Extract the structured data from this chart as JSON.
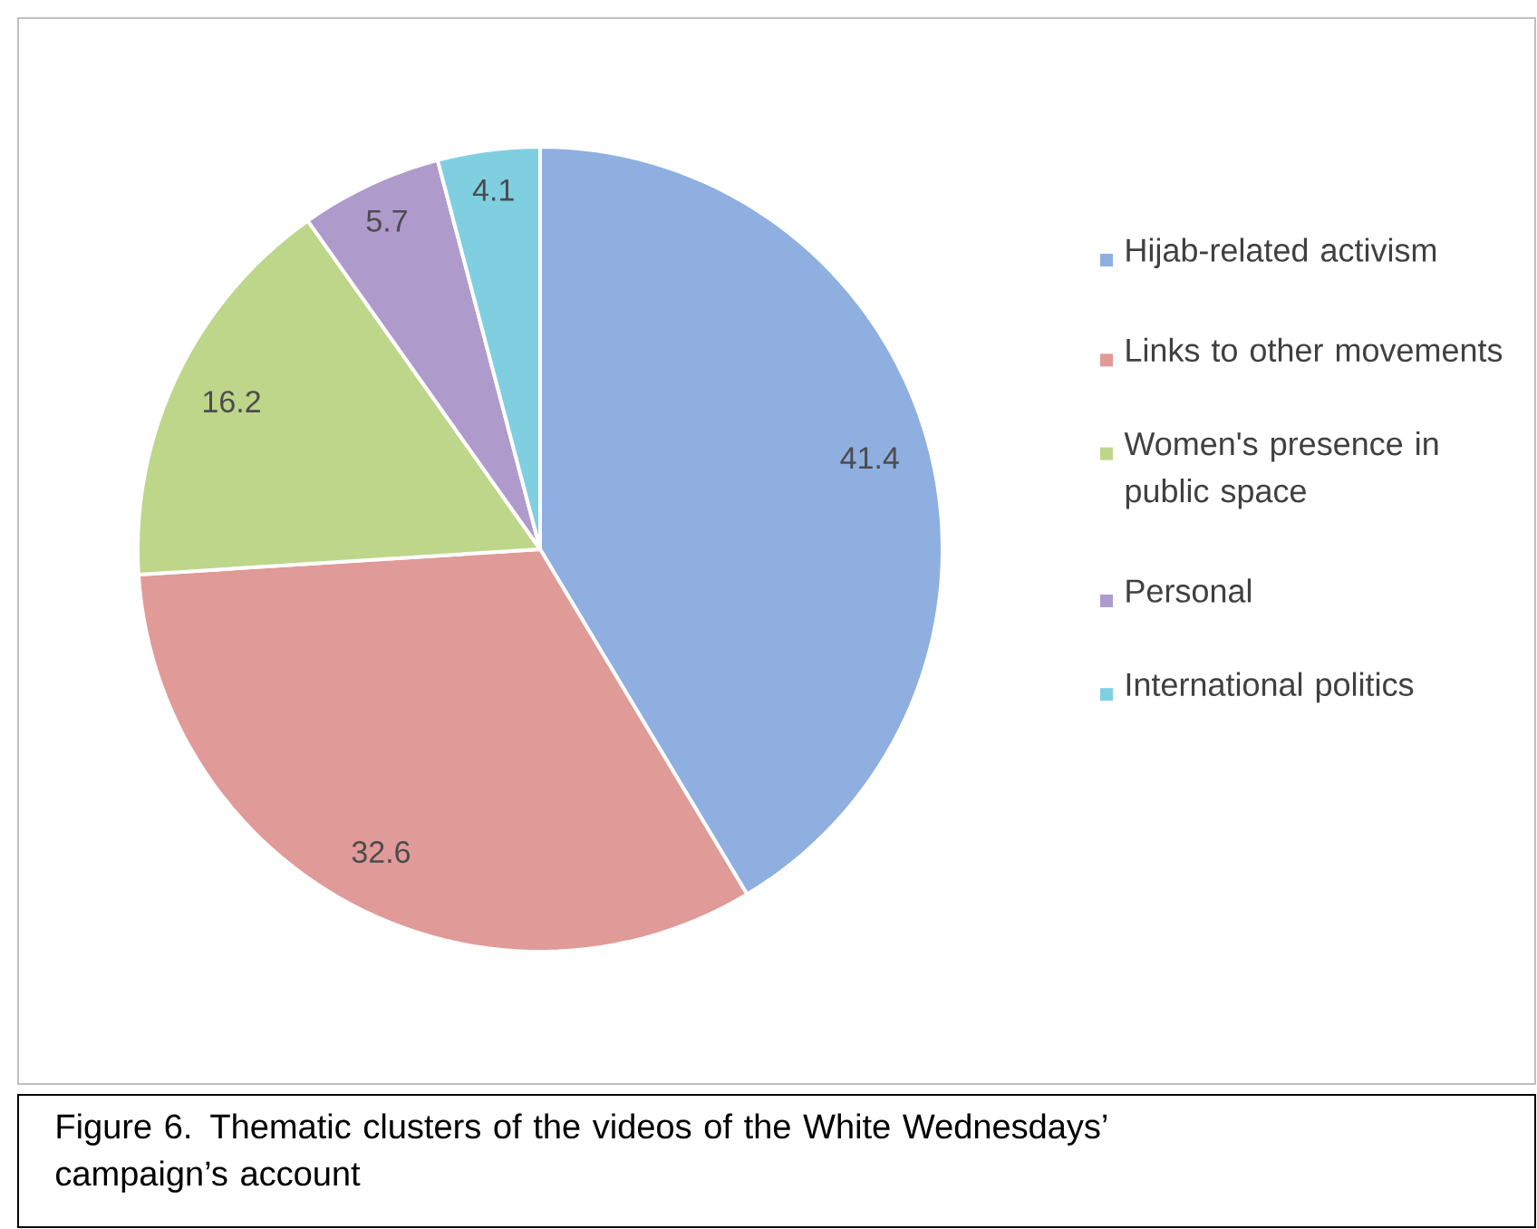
{
  "chart_data": {
    "type": "pie",
    "categories": [
      "Hijab-related activism",
      "Links to other movements",
      "Women's presence in public space",
      "Personal",
      "International politics"
    ],
    "values": [
      41.4,
      32.6,
      16.2,
      5.7,
      4.1
    ],
    "colors": [
      "#8eafe0",
      "#e09a98",
      "#bdd68a",
      "#ae9bcb",
      "#7fcfe0"
    ],
    "data_labels": true,
    "legend": "right",
    "annotations": [
      "Figure 6. Thematic clusters of the videos of the White Wednesdays’ campaign’s account"
    ]
  }
}
